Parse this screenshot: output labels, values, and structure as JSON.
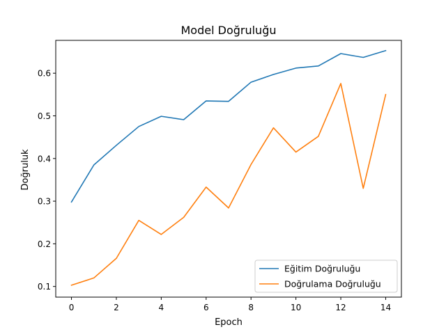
{
  "chart_data": {
    "type": "line",
    "title": "Model Doğruluğu",
    "xlabel": "Epoch",
    "ylabel": "Doğruluk",
    "x": [
      0,
      1,
      2,
      3,
      4,
      5,
      6,
      7,
      8,
      9,
      10,
      11,
      12,
      13,
      14
    ],
    "xlim": [
      -0.7,
      14.7
    ],
    "ylim": [
      0.075,
      0.677
    ],
    "xticks": [
      0,
      2,
      4,
      6,
      8,
      10,
      12,
      14
    ],
    "yticks": [
      0.1,
      0.2,
      0.3,
      0.4,
      0.5,
      0.6
    ],
    "xtick_labels": [
      "0",
      "2",
      "4",
      "6",
      "8",
      "10",
      "12",
      "14"
    ],
    "ytick_labels": [
      "0.1",
      "0.2",
      "0.3",
      "0.4",
      "0.5",
      "0.6"
    ],
    "grid": false,
    "legend_position": "lower-right",
    "series": [
      {
        "name": "Eğitim Doğruluğu",
        "color": "#1f77b4",
        "values": [
          0.298,
          0.385,
          0.431,
          0.475,
          0.499,
          0.491,
          0.535,
          0.534,
          0.579,
          0.597,
          0.612,
          0.617,
          0.646,
          0.637,
          0.653
        ]
      },
      {
        "name": "Doğrulama Doğruluğu",
        "color": "#ff7f0e",
        "values": [
          0.103,
          0.12,
          0.166,
          0.255,
          0.222,
          0.262,
          0.333,
          0.284,
          0.386,
          0.472,
          0.415,
          0.452,
          0.576,
          0.33,
          0.55
        ]
      }
    ]
  }
}
